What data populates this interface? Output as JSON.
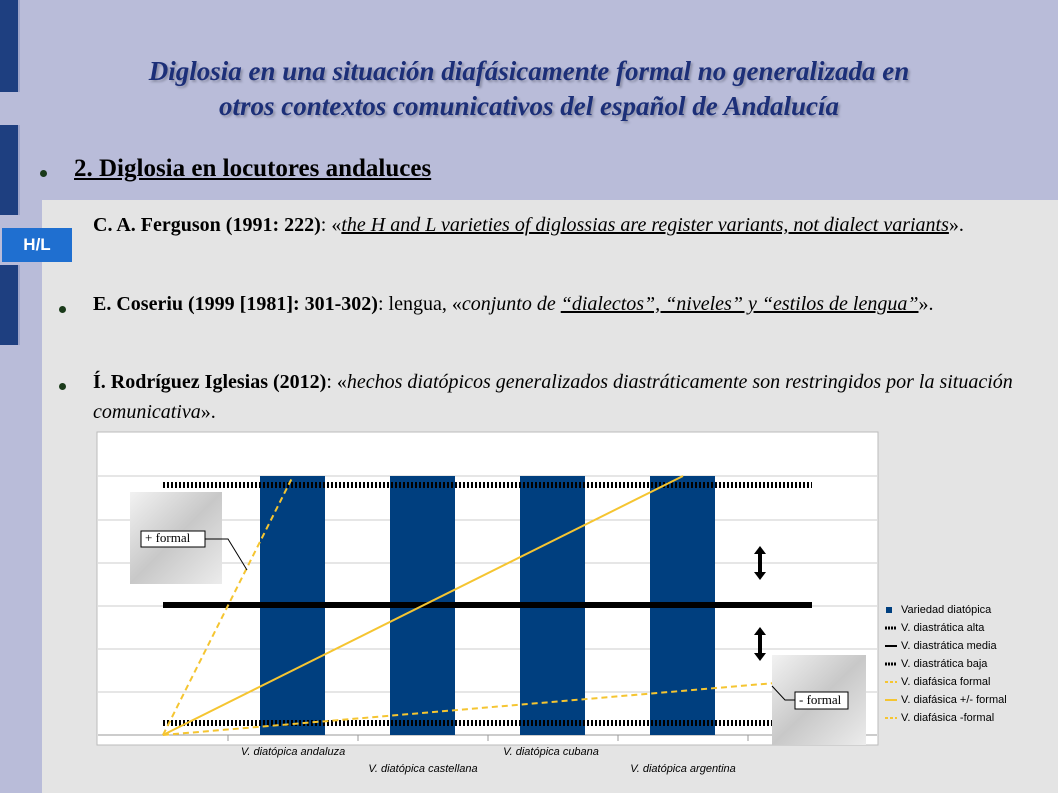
{
  "title": [
    "Diglosia en una situación diafásicamente formal no generalizada en",
    "otros contextos comunicativos del español de Andalucía"
  ],
  "tag": "H/L",
  "heading": "2. Diglosia en locutores andaluces",
  "bullets": [
    {
      "segments": [
        {
          "text": "C. A. Ferguson (1991: 222)",
          "style": "b"
        },
        {
          "text": ": «",
          "style": "t"
        },
        {
          "text": "the H and L varieties of diglossias are register variants, not dialect variants",
          "style": "iu"
        },
        {
          "text": "».",
          "style": "t"
        }
      ]
    },
    {
      "segments": [
        {
          "text": "E. Coseriu (1999 [1981]: 301-302)",
          "style": "b"
        },
        {
          "text": ": lengua, «",
          "style": "t"
        },
        {
          "text": "conjunto de ",
          "style": "i"
        },
        {
          "text": "“dialectos”, “niveles” y “estilos de lengua”",
          "style": "iu"
        },
        {
          "text": "».",
          "style": "t"
        }
      ]
    },
    {
      "segments": [
        {
          "text": "Í. Rodríguez Iglesias (2012)",
          "style": "b"
        },
        {
          "text": ": «",
          "style": "t"
        },
        {
          "text": "hechos diatópicos generalizados diastráticamente son restringidos por la situación comunicativa",
          "style": "i"
        },
        {
          "text": "».",
          "style": "t"
        }
      ]
    }
  ],
  "chart": {
    "categories": [
      "V. diatópica andaluza",
      "V. diatópica castellana",
      "V. diatópica cubana",
      "V. diatópica argentina"
    ],
    "legend": [
      "Variedad diatópica",
      "V. diastrática alta",
      "V. diastrática media",
      "V. diastrática baja",
      "V. diafásica formal",
      "V. diafásica +/- formal",
      "V. diafásica -formal"
    ],
    "annotations": [
      "+ formal",
      "- formal"
    ]
  }
}
